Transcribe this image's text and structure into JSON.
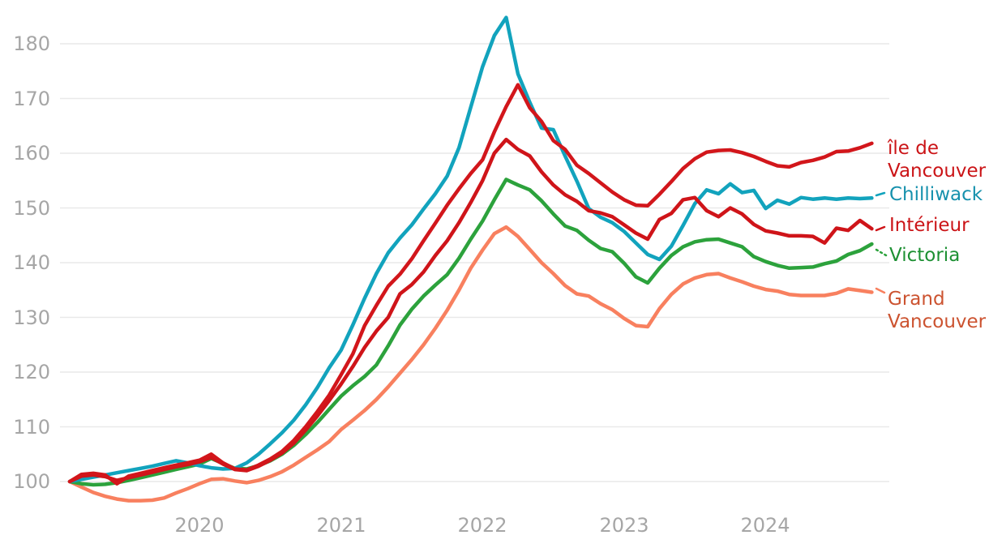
{
  "chart_data": {
    "type": "line",
    "title": "",
    "x_axis": {
      "tick_labels": [
        "2020",
        "2021",
        "2022",
        "2023",
        "2024"
      ],
      "range_months": {
        "start": "2019-02",
        "end": "2024-10",
        "points_per_series": 69
      }
    },
    "y_axis": {
      "tick_labels": [
        "100",
        "110",
        "120",
        "130",
        "140",
        "150",
        "160",
        "170",
        "180"
      ],
      "ticks": [
        100,
        110,
        120,
        130,
        140,
        150,
        160,
        170,
        180
      ],
      "ylim": [
        96,
        186
      ],
      "grid": true,
      "gridline_color": "#e9e9e9"
    },
    "legend_position": "right",
    "axis_text_color": "#a6a6a6",
    "series": [
      {
        "name": "île de Vancouver",
        "label_lines": [
          "île de",
          "Vancouver"
        ],
        "color": "#d2161b",
        "label_color": "#cb1417",
        "values": [
          100,
          101.3,
          101.5,
          101.2,
          99.6,
          101,
          101.5,
          102,
          102.5,
          103,
          103.4,
          103.9,
          105,
          103.4,
          102.3,
          102.1,
          103,
          104.1,
          105.5,
          107.5,
          110,
          112.8,
          115.8,
          119.5,
          123.3,
          128.5,
          132.2,
          135.7,
          137.9,
          140.7,
          144,
          147.2,
          150.5,
          153.5,
          156.3,
          158.8,
          163.9,
          168.5,
          172.5,
          168.3,
          165.8,
          162.3,
          160.7,
          157.8,
          156.3,
          154.6,
          152.9,
          151.5,
          150.5,
          150.4,
          152.5,
          154.8,
          157.2,
          159,
          160.2,
          160.5,
          160.6,
          160.1,
          159.4,
          158.5,
          157.7,
          157.5,
          158.3,
          158.7,
          159.3,
          160.3,
          160.4,
          161,
          161.8
        ]
      },
      {
        "name": "Chilliwack",
        "label_lines": [
          "Chilliwack"
        ],
        "color": "#12a3bd",
        "label_color": "#1691ad",
        "values": [
          100,
          100.4,
          100.8,
          101.2,
          101.6,
          102,
          102.4,
          102.8,
          103.3,
          103.8,
          103.4,
          102.9,
          102.5,
          102.3,
          102.4,
          103.4,
          105,
          106.9,
          108.9,
          111.2,
          114,
          117.2,
          120.8,
          124,
          128.6,
          133.5,
          138,
          141.8,
          144.5,
          146.9,
          149.8,
          152.6,
          155.8,
          161,
          168.4,
          175.8,
          181.5,
          184.8,
          174.5,
          169.3,
          164.6,
          164.3,
          159.5,
          154.9,
          149.9,
          148.3,
          147.3,
          145.7,
          143.6,
          141.5,
          140.6,
          143,
          146.8,
          150.8,
          153.3,
          152.6,
          154.4,
          152.8,
          153.2,
          149.9,
          151.4,
          150.7,
          151.9,
          151.6,
          151.8,
          151.6,
          151.8,
          151.7,
          151.8
        ]
      },
      {
        "name": "Intérieur",
        "label_lines": [
          "Intérieur"
        ],
        "color": "#cf1419",
        "label_color": "#cb1417",
        "values": [
          100,
          101,
          101.2,
          100.9,
          100.2,
          100.7,
          101.2,
          101.7,
          102.2,
          102.7,
          103.1,
          103.6,
          104.4,
          103.2,
          102.2,
          102,
          102.8,
          103.9,
          105.2,
          107,
          109.4,
          112,
          114.8,
          117.8,
          121,
          124.5,
          127.5,
          130,
          134.3,
          136,
          138.3,
          141.3,
          144,
          147.3,
          151,
          155,
          160,
          162.5,
          160.7,
          159.5,
          156.6,
          154.2,
          152.4,
          151.2,
          149.5,
          149.1,
          148.4,
          146.9,
          145.4,
          144.3,
          147.9,
          149,
          151.5,
          151.9,
          149.5,
          148.4,
          150,
          148.9,
          147,
          145.8,
          145.4,
          144.9,
          144.9,
          144.8,
          143.6,
          146.3,
          145.9,
          147.7,
          146.2
        ]
      },
      {
        "name": "Victoria",
        "label_lines": [
          "Victoria"
        ],
        "color": "#2ca23c",
        "label_color": "#1d9033",
        "values": [
          100,
          99.6,
          99.4,
          99.5,
          99.8,
          100.2,
          100.7,
          101.2,
          101.7,
          102.2,
          102.7,
          103.2,
          104.2,
          103.3,
          102.4,
          102.3,
          102.9,
          103.8,
          105,
          106.6,
          108.6,
          110.8,
          113.2,
          115.6,
          117.5,
          119.2,
          121.3,
          124.8,
          128.6,
          131.5,
          133.9,
          135.9,
          137.8,
          140.8,
          144.3,
          147.6,
          151.5,
          155.2,
          154.2,
          153.3,
          151.3,
          148.9,
          146.7,
          145.9,
          144.1,
          142.6,
          142,
          139.9,
          137.4,
          136.3,
          139,
          141.3,
          142.9,
          143.8,
          144.2,
          144.3,
          143.6,
          142.9,
          141.1,
          140.2,
          139.5,
          139,
          139.1,
          139.2,
          139.8,
          140.3,
          141.5,
          142.2,
          143.4
        ]
      },
      {
        "name": "Grand Vancouver",
        "label_lines": [
          "Grand",
          "Vancouver"
        ],
        "color": "#f8805f",
        "label_color": "#cc5330",
        "values": [
          100,
          99,
          98,
          97.3,
          96.8,
          96.5,
          96.5,
          96.6,
          97,
          97.9,
          98.7,
          99.6,
          100.4,
          100.5,
          100.1,
          99.8,
          100.2,
          100.9,
          101.8,
          103,
          104.4,
          105.8,
          107.3,
          109.5,
          111.2,
          113,
          115,
          117.3,
          119.8,
          122.3,
          125,
          128,
          131.3,
          135,
          139,
          142.3,
          145.3,
          146.5,
          144.8,
          142.4,
          140,
          138,
          135.8,
          134.3,
          133.9,
          132.5,
          131.4,
          129.8,
          128.5,
          128.3,
          131.6,
          134.2,
          136.1,
          137.2,
          137.8,
          138,
          137.2,
          136.5,
          135.7,
          135.1,
          134.8,
          134.2,
          134,
          134,
          134,
          134.4,
          135.2,
          134.9,
          134.6
        ]
      }
    ]
  }
}
